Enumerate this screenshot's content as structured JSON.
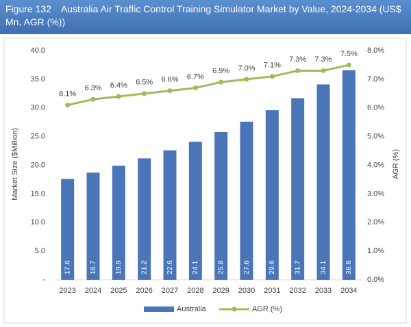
{
  "chart_data": {
    "type": "bar",
    "figure_label": "Figure 132",
    "title": "Australia Air Traffic Control Training Simulator Market by Value, 2024-2034 (US$ Mn, AGR (%))",
    "categories": [
      "2023",
      "2024",
      "2025",
      "2026",
      "2027",
      "2028",
      "2029",
      "2030",
      "2031",
      "2032",
      "2033",
      "2034"
    ],
    "series": [
      {
        "name": "Australia",
        "type": "bar",
        "color": "#4a76b8",
        "values": [
          17.6,
          18.7,
          19.9,
          21.2,
          22.6,
          24.1,
          25.8,
          27.6,
          29.6,
          31.7,
          34.1,
          36.6
        ]
      },
      {
        "name": "AGR (%)",
        "type": "line",
        "axis": "y2",
        "color": "#9bbb59",
        "values": [
          6.1,
          6.3,
          6.4,
          6.5,
          6.6,
          6.7,
          6.9,
          7.0,
          7.1,
          7.3,
          7.3,
          7.5
        ],
        "value_labels": [
          "6.1%",
          "6.3%",
          "6.4%",
          "6.5%",
          "6.6%",
          "6.7%",
          "6.9%",
          "7.0%",
          "7.1%",
          "7.3%",
          "7.3%",
          "7.5%"
        ]
      }
    ],
    "ylabel": "Market Size ($Million)",
    "y2label": "AGR (%)",
    "ylim": [
      0,
      40
    ],
    "yticks": [
      {
        "value": 0,
        "label": "-"
      },
      {
        "value": 5,
        "label": "5.0"
      },
      {
        "value": 10,
        "label": "10.0"
      },
      {
        "value": 15,
        "label": "15.0"
      },
      {
        "value": 20,
        "label": "20.0"
      },
      {
        "value": 25,
        "label": "25.0"
      },
      {
        "value": 30,
        "label": "30.0"
      },
      {
        "value": 35,
        "label": "35.0"
      },
      {
        "value": 40,
        "label": "40.0"
      }
    ],
    "y2lim": [
      0,
      8
    ],
    "y2ticks": [
      {
        "value": 0,
        "label": "0.0%"
      },
      {
        "value": 1,
        "label": "1.0%"
      },
      {
        "value": 2,
        "label": "2.0%"
      },
      {
        "value": 3,
        "label": "3.0%"
      },
      {
        "value": 4,
        "label": "4.0%"
      },
      {
        "value": 5,
        "label": "5.0%"
      },
      {
        "value": 6,
        "label": "6.0%"
      },
      {
        "value": 7,
        "label": "7.0%"
      },
      {
        "value": 8,
        "label": "8.0%"
      }
    ],
    "grid": false,
    "legend": "bottom"
  }
}
